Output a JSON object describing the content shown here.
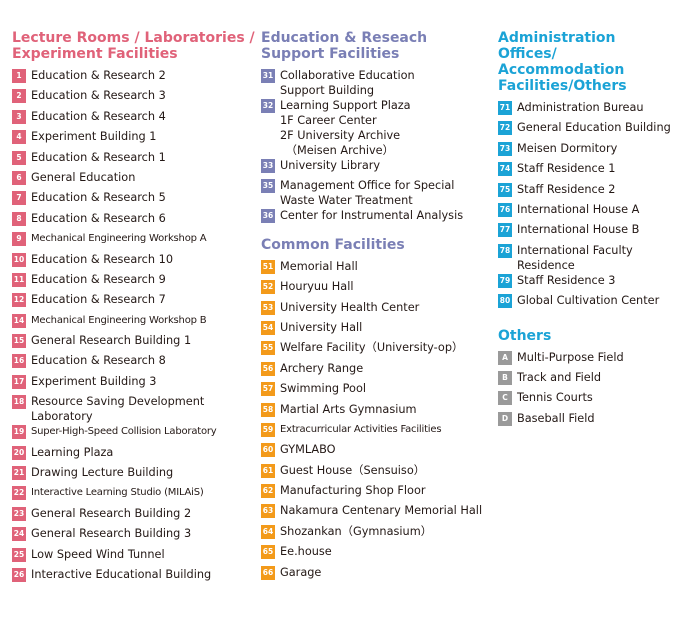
{
  "colors": {
    "lecture": "#e06279",
    "support": "#7a7fb5",
    "common": "#f39a1a",
    "admin": "#1ba3d6",
    "others": "#9a9a9a"
  },
  "lecture": {
    "heading": "Lecture Rooms / Laboratories / Experiment Facilities",
    "items": [
      {
        "num": "1",
        "name": "Education & Research 2"
      },
      {
        "num": "2",
        "name": "Education & Research 3"
      },
      {
        "num": "3",
        "name": "Education & Research 4"
      },
      {
        "num": "4",
        "name": "Experiment Building 1"
      },
      {
        "num": "5",
        "name": "Education & Research 1"
      },
      {
        "num": "6",
        "name": "General Education"
      },
      {
        "num": "7",
        "name": "Education & Research 5"
      },
      {
        "num": "8",
        "name": "Education & Research 6"
      },
      {
        "num": "9",
        "name": "Mechanical Engineering Workshop A"
      },
      {
        "num": "10",
        "name": "Education & Research 10"
      },
      {
        "num": "11",
        "name": "Education & Research 9"
      },
      {
        "num": "12",
        "name": "Education & Research 7"
      },
      {
        "num": "14",
        "name": "Mechanical Engineering Workshop B"
      },
      {
        "num": "15",
        "name": "General Research Building 1"
      },
      {
        "num": "16",
        "name": "Education & Research 8"
      },
      {
        "num": "17",
        "name": "Experiment Building 3"
      },
      {
        "num": "18",
        "name": "Resource Saving Development\nLaboratory"
      },
      {
        "num": "19",
        "name": "Super-High-Speed Collision Laboratory"
      },
      {
        "num": "20",
        "name": "Learning Plaza"
      },
      {
        "num": "21",
        "name": "Drawing Lecture Building"
      },
      {
        "num": "22",
        "name": "Interactive Learning Studio (MILAiS)"
      },
      {
        "num": "23",
        "name": "General Research Building 2"
      },
      {
        "num": "24",
        "name": "General Research Building 3"
      },
      {
        "num": "25",
        "name": "Low Speed Wind Tunnel"
      },
      {
        "num": "26",
        "name": "Interactive Educational Building"
      }
    ]
  },
  "support": {
    "heading": "Education & Reseach Support Facilities",
    "items": [
      {
        "num": "31",
        "name": "Collaborative Education\nSupport Building"
      },
      {
        "num": "32",
        "name": "Learning Support Plaza\n1F Career Center\n2F University Archive\n　（Meisen Archive）"
      },
      {
        "num": "33",
        "name": "University Library"
      },
      {
        "num": "35",
        "name": "Management Office for Special\nWaste Water Treatment"
      },
      {
        "num": "36",
        "name": "Center for Instrumental Analysis"
      }
    ]
  },
  "common": {
    "heading": "Common Facilities",
    "items": [
      {
        "num": "51",
        "name": "Memorial Hall"
      },
      {
        "num": "52",
        "name": "Houryuu Hall"
      },
      {
        "num": "53",
        "name": "University Health Center"
      },
      {
        "num": "54",
        "name": "University Hall"
      },
      {
        "num": "55",
        "name": "Welfare Facility（University-op）"
      },
      {
        "num": "56",
        "name": "Archery Range"
      },
      {
        "num": "57",
        "name": "Swimming Pool"
      },
      {
        "num": "58",
        "name": "Martial Arts Gymnasium"
      },
      {
        "num": "59",
        "name": "Extracurricular Activities Facilities"
      },
      {
        "num": "60",
        "name": "GYMLABO"
      },
      {
        "num": "61",
        "name": "Guest House（Sensuiso）"
      },
      {
        "num": "62",
        "name": "Manufacturing Shop Floor"
      },
      {
        "num": "63",
        "name": "Nakamura Centenary Memorial Hall"
      },
      {
        "num": "64",
        "name": "Shozankan（Gymnasium）"
      },
      {
        "num": "65",
        "name": "Ee.house"
      },
      {
        "num": "66",
        "name": "Garage"
      }
    ]
  },
  "admin": {
    "heading": "Administration Offices/ Accommodation Facilities/Others",
    "items": [
      {
        "num": "71",
        "name": "Administration Bureau"
      },
      {
        "num": "72",
        "name": "General Education Building"
      },
      {
        "num": "73",
        "name": "Meisen Dormitory"
      },
      {
        "num": "74",
        "name": "Staff Residence 1"
      },
      {
        "num": "75",
        "name": "Staff Residence 2"
      },
      {
        "num": "76",
        "name": "International House A"
      },
      {
        "num": "77",
        "name": "International House B"
      },
      {
        "num": "78",
        "name": "International Faculty Residence"
      },
      {
        "num": "79",
        "name": "Staff Residence 3"
      },
      {
        "num": "80",
        "name": "Global Cultivation Center"
      }
    ]
  },
  "others": {
    "heading": "Others",
    "items": [
      {
        "num": "A",
        "name": "Multi-Purpose Field"
      },
      {
        "num": "B",
        "name": "Track and Field"
      },
      {
        "num": "C",
        "name": "Tennis Courts"
      },
      {
        "num": "D",
        "name": "Baseball Field"
      }
    ]
  }
}
